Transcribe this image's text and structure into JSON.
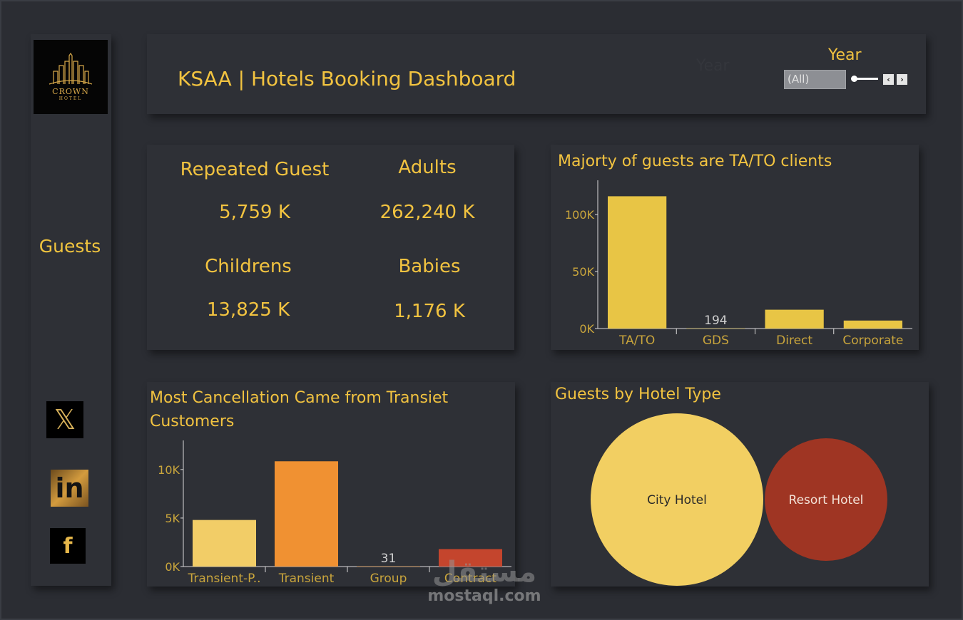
{
  "header": {
    "title": "KSAA | Hotels Booking Dashboard",
    "year_filter": {
      "label": "Year",
      "ghost_label": "Year",
      "selected": "(All)",
      "prev_icon": "chevron-left-icon",
      "next_icon": "chevron-right-icon"
    }
  },
  "sidebar": {
    "logo": {
      "brand": "CROWN",
      "sub": "HOTEL"
    },
    "nav_label": "Guests",
    "social": [
      {
        "name": "x",
        "glyph": "𝕏"
      },
      {
        "name": "linkedin",
        "glyph": "in"
      },
      {
        "name": "facebook",
        "glyph": "f"
      }
    ]
  },
  "kpis": [
    {
      "label": "Repeated Guest",
      "value": "5,759 K"
    },
    {
      "label": "Adults",
      "value": "262,240 K"
    },
    {
      "label": "Childrens",
      "value": "13,825 K"
    },
    {
      "label": "Babies",
      "value": "1,176 K"
    }
  ],
  "chart_data": [
    {
      "type": "bar",
      "title": "Majorty of guests are TA/TO clients",
      "categories": [
        "TA/TO",
        "GDS",
        "Direct",
        "Corporate"
      ],
      "values": [
        116000,
        194,
        16500,
        7000
      ],
      "data_labels": {
        "GDS": "194"
      },
      "yticks": [
        "0K",
        "50K",
        "100K"
      ],
      "ylim": [
        0,
        130000
      ],
      "colors": [
        "#e8c545",
        "#e8c545",
        "#e8c545",
        "#e8c545"
      ],
      "grid": false
    },
    {
      "type": "bar",
      "title": "Most Cancellation Came from Transiet Customers",
      "categories": [
        "Transient-P..",
        "Transient",
        "Group",
        "Contract"
      ],
      "values": [
        4800,
        10850,
        31,
        1800
      ],
      "data_labels": {
        "Group": "31"
      },
      "yticks": [
        "0K",
        "5K",
        "10K"
      ],
      "ylim": [
        0,
        13000
      ],
      "colors": [
        "#f2cd67",
        "#f09132",
        "#f09132",
        "#c4452d"
      ],
      "grid": false
    },
    {
      "type": "bubble",
      "title": "Guests by Hotel Type",
      "categories": [
        "City Hotel",
        "Resort Hotel"
      ],
      "values": [
        79330,
        40060
      ],
      "colors": [
        "#f2cf62",
        "#9f3523"
      ]
    }
  ],
  "watermark": {
    "arabic": "مستقل",
    "latin": "mostaql.com"
  }
}
